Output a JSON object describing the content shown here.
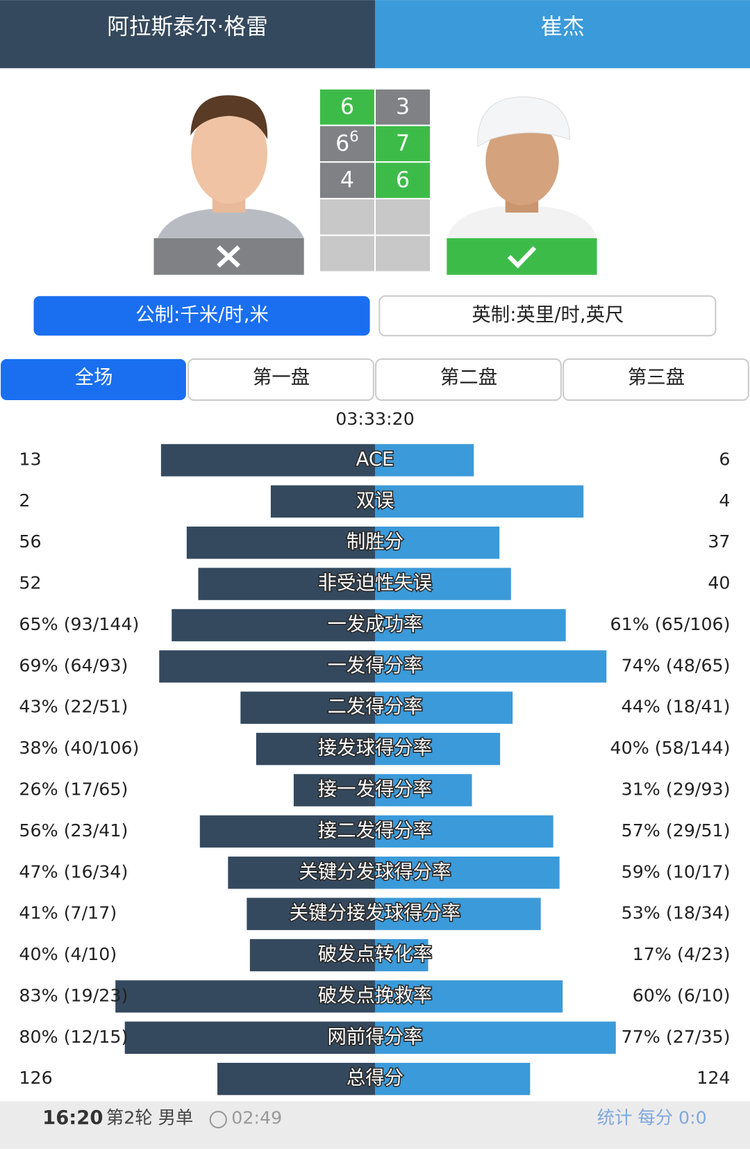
{
  "header": {
    "player1": "阿拉斯泰尔·格雷",
    "player2": "崔杰"
  },
  "score": {
    "sets": [
      {
        "player1": 6,
        "player2": 3
      },
      {
        "player1": 6,
        "player1_tiebreak": 6,
        "player2": 7
      },
      {
        "player1": 4,
        "player2": 6
      }
    ]
  },
  "units": {
    "metric": "公制:千米/时,米",
    "imperial": "英制:英里/时,英尺"
  },
  "tabs": [
    "全场",
    "第一盘",
    "第二盘",
    "第三盘"
  ],
  "duration": "03:33:20",
  "stats": [
    {
      "label": "ACE",
      "player1": 13,
      "player2": 6
    },
    {
      "label": "双误",
      "player1": 2,
      "player2": 4
    },
    {
      "label": "制胜分",
      "player1": 56,
      "player2": 37
    },
    {
      "label": "非受迫性失误",
      "player1": 52,
      "player2": 40
    },
    {
      "label": "一发成功率",
      "player1": {
        "value": 65,
        "label": "65% (93/144)"
      },
      "player2": {
        "value": 61,
        "label": "61% (65/106)"
      }
    },
    {
      "label": "一发得分率",
      "player1": {
        "value": 69,
        "label": "69% (64/93)"
      },
      "player2": {
        "value": 74,
        "label": "74% (48/65)"
      }
    },
    {
      "label": "二发得分率",
      "player1": {
        "value": 43,
        "label": "43% (22/51)"
      },
      "player2": {
        "value": 44,
        "label": "44% (18/41)"
      }
    },
    {
      "label": "接发球得分率",
      "player1": {
        "value": 38,
        "label": "38% (40/106)"
      },
      "player2": {
        "value": 40,
        "label": "40% (58/144)"
      }
    },
    {
      "label": "接一发得分率",
      "player1": {
        "value": 26,
        "label": "26% (17/65)"
      },
      "player2": {
        "value": 31,
        "label": "31% (29/93)"
      }
    },
    {
      "label": "接二发得分率",
      "player1": {
        "value": 56,
        "label": "56% (23/41)"
      },
      "player2": {
        "value": 57,
        "label": "57% (29/51)"
      }
    },
    {
      "label": "关键分发球得分率",
      "player1": {
        "value": 47,
        "label": "47% (16/34)"
      },
      "player2": {
        "value": 59,
        "label": "59% (10/17)"
      }
    },
    {
      "label": "关键分接发球得分率",
      "player1": {
        "value": 41,
        "label": "41% (7/17)"
      },
      "player2": {
        "value": 53,
        "label": "53% (18/34)"
      }
    },
    {
      "label": "破发点转化率",
      "player1": {
        "value": 40,
        "label": "40% (4/10)"
      },
      "player2": {
        "value": 17,
        "label": "17% (4/23)"
      }
    },
    {
      "label": "破发点挽救率",
      "player1": {
        "value": 83,
        "label": "83% (19/23)"
      },
      "player2": {
        "value": 60,
        "label": "60% (6/10)"
      }
    },
    {
      "label": "网前得分率",
      "player1": {
        "value": 80,
        "label": "80% (12/15)"
      },
      "player2": {
        "value": 77,
        "label": "77% (27/35)"
      }
    },
    {
      "label": "总得分",
      "player1": 126,
      "player2": 124
    }
  ],
  "footer": {
    "time": "16:20",
    "round": "第2轮 男单",
    "elapsed": "02:49",
    "links": "统计 每分 0:0"
  }
}
